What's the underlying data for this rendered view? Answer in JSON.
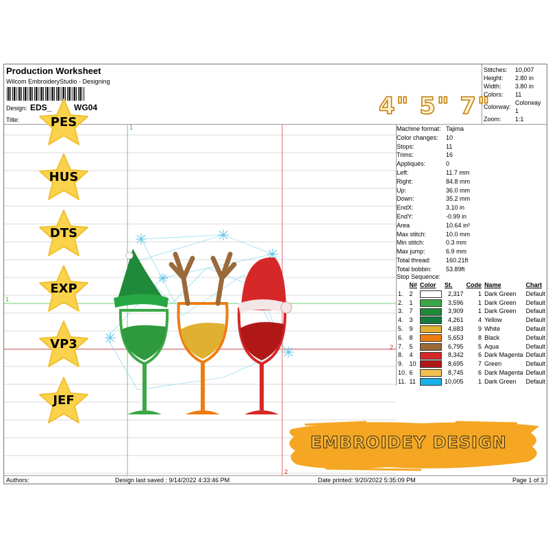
{
  "header": {
    "title": "Production Worksheet",
    "subtitle": "Wilcom EmbroideryStudio - Designing",
    "design_label": "Design:",
    "design_value": "EDS_",
    "design_suffix": "WG04",
    "title_label": "Title:"
  },
  "stats": [
    {
      "k": "Stitches:",
      "v": "10,007"
    },
    {
      "k": "Height:",
      "v": "2.80 in"
    },
    {
      "k": "Width:",
      "v": "3.80 in"
    },
    {
      "k": "Colors:",
      "v": "11"
    },
    {
      "k": "Colorway:",
      "v": "Colorway 1"
    },
    {
      "k": "Zoom:",
      "v": "1:1"
    }
  ],
  "sizes_overlay": "4\"  5\"  7\"",
  "properties": [
    {
      "k": "Machine format:",
      "v": "Tajima"
    },
    {
      "k": "Color changes:",
      "v": "10"
    },
    {
      "k": "Stops:",
      "v": "11"
    },
    {
      "k": "Trims:",
      "v": "16"
    },
    {
      "k": "Appliqués:",
      "v": "0"
    },
    {
      "k": "Left:",
      "v": "11.7 mm"
    },
    {
      "k": "Right:",
      "v": "84.8 mm"
    },
    {
      "k": "Up:",
      "v": "36.0 mm"
    },
    {
      "k": "Down:",
      "v": "35.2 mm"
    },
    {
      "k": "EndX:",
      "v": "3.10 in"
    },
    {
      "k": "EndY:",
      "v": "-0.99 in"
    },
    {
      "k": "Area",
      "v": "10.64 in²"
    },
    {
      "k": "Max stitch:",
      "v": "10.0 mm"
    },
    {
      "k": "Min stitch:",
      "v": "0.3 mm"
    },
    {
      "k": "Max jump:",
      "v": "6.9 mm"
    },
    {
      "k": "Total thread:",
      "v": "160.21ft"
    },
    {
      "k": "Total bobbin:",
      "v": "53.89ft"
    }
  ],
  "stop_sequence": {
    "label": "Stop Sequence:",
    "columns": [
      "N#",
      "Color",
      "St.",
      "Code",
      "Name",
      "Chart"
    ],
    "rows": [
      {
        "i": "1.",
        "n": "2",
        "color": "#ffffff",
        "st": "2,317",
        "code": "1",
        "name": "Dark Green",
        "chart": "Default"
      },
      {
        "i": "2.",
        "n": "1",
        "color": "#3aa845",
        "st": "3,596",
        "code": "1",
        "name": "Dark Green",
        "chart": "Default"
      },
      {
        "i": "3.",
        "n": "7",
        "color": "#1e8a3a",
        "st": "3,909",
        "code": "1",
        "name": "Dark Green",
        "chart": "Default"
      },
      {
        "i": "4.",
        "n": "3",
        "color": "#147a3c",
        "st": "4,261",
        "code": "4",
        "name": "Yellow",
        "chart": "Default"
      },
      {
        "i": "5.",
        "n": "9",
        "color": "#e0b030",
        "st": "4,683",
        "code": "9",
        "name": "White",
        "chart": "Default"
      },
      {
        "i": "6.",
        "n": "8",
        "color": "#ee7d10",
        "st": "5,653",
        "code": "8",
        "name": "Black",
        "chart": "Default"
      },
      {
        "i": "7.",
        "n": "5",
        "color": "#9a6a3a",
        "st": "6,795",
        "code": "5",
        "name": "Aqua",
        "chart": "Default"
      },
      {
        "i": "8.",
        "n": "4",
        "color": "#d62828",
        "st": "8,342",
        "code": "6",
        "name": "Dark Magenta",
        "chart": "Default"
      },
      {
        "i": "9.",
        "n": "10",
        "color": "#b01818",
        "st": "8,695",
        "code": "7",
        "name": "Green",
        "chart": "Default"
      },
      {
        "i": "10.",
        "n": "6",
        "color": "#f0c050",
        "st": "8,745",
        "code": "6",
        "name": "Dark Magenta",
        "chart": "Default"
      },
      {
        "i": "11.",
        "n": "11",
        "color": "#18b0e8",
        "st": "10,005",
        "code": "1",
        "name": "Dark Green",
        "chart": "Default"
      }
    ]
  },
  "formats": [
    "PES",
    "HUS",
    "DTS",
    "EXP",
    "VP3",
    "JEF"
  ],
  "banner": "EMBROIDEY DESIGN",
  "axis_markers": {
    "top": "1",
    "left": "1",
    "right": "2",
    "bottom": "2"
  },
  "footer": {
    "authors": "Authors:",
    "saved": "Design last saved : 9/14/2022 4:33:46 PM",
    "printed": "Date printed: 9/20/2022 5:35:09 PM",
    "page": "Page 1 of 3"
  },
  "colors": {
    "star": "#fbd24b",
    "brush": "#f5a623",
    "guide_green": "#6ccf6c",
    "guide_red": "#e26a6a"
  }
}
